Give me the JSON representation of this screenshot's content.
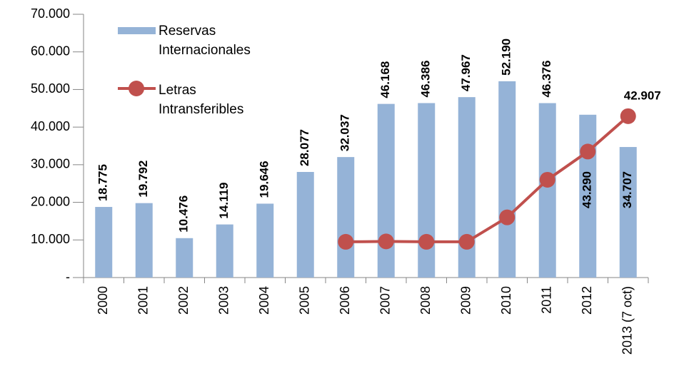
{
  "chart_data": {
    "type": "bar",
    "categories": [
      "2000",
      "2001",
      "2002",
      "2003",
      "2004",
      "2005",
      "2006",
      "2007",
      "2008",
      "2009",
      "2010",
      "2011",
      "2012",
      "2013 (7 oct)"
    ],
    "series": [
      {
        "name": "Reservas Internacionales",
        "type": "bar",
        "color": "#95b3d7",
        "values": [
          18775,
          19792,
          10476,
          14119,
          19646,
          28077,
          32037,
          46168,
          46386,
          47967,
          52190,
          46376,
          43290,
          34707
        ],
        "value_labels": [
          "18.775",
          "19.792",
          "10.476",
          "14.119",
          "19.646",
          "28.077",
          "32.037",
          "46.168",
          "46.386",
          "47.967",
          "52.190",
          "46.376",
          "43.290",
          "34.707"
        ]
      },
      {
        "name": "Letras Intransferibles",
        "type": "line",
        "color": "#c0504d",
        "values": [
          null,
          null,
          null,
          null,
          null,
          null,
          9500,
          9600,
          9500,
          9500,
          16000,
          26000,
          33500,
          42907
        ],
        "value_labels": [
          null,
          null,
          null,
          null,
          null,
          null,
          null,
          null,
          null,
          null,
          null,
          null,
          null,
          "42.907"
        ]
      }
    ],
    "ylim": [
      0,
      70000
    ],
    "yticks": [
      {
        "value": 0,
        "label": "-"
      },
      {
        "value": 10000,
        "label": "10.000"
      },
      {
        "value": 20000,
        "label": "20.000"
      },
      {
        "value": 30000,
        "label": "30.000"
      },
      {
        "value": 40000,
        "label": "40.000"
      },
      {
        "value": 50000,
        "label": "50.000"
      },
      {
        "value": 60000,
        "label": "60.000"
      },
      {
        "value": 70000,
        "label": "70.000"
      }
    ],
    "legend": "top-left"
  }
}
